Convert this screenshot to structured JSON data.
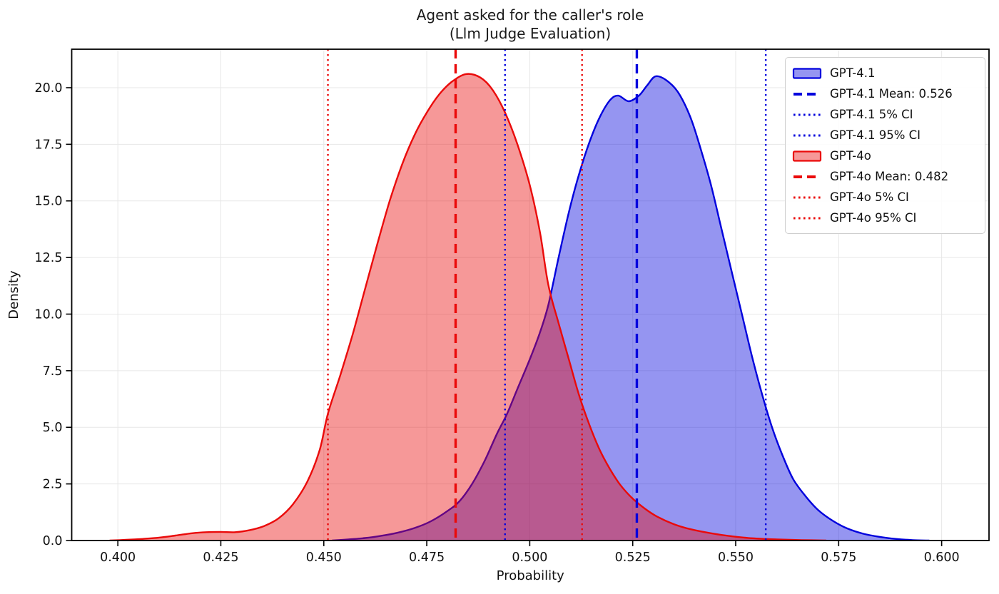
{
  "title": {
    "line1": "Agent asked for the caller's role",
    "line2": "(Llm Judge Evaluation)"
  },
  "chart_data": {
    "type": "area",
    "subtype": "kde-density-comparison",
    "title": "Agent asked for the caller's role (Llm Judge Evaluation)",
    "xlabel": "Probability",
    "ylabel": "Density",
    "xlim": [
      0.3888,
      0.6115
    ],
    "ylim": [
      0,
      21.7
    ],
    "grid": true,
    "background_color": "#ffffff",
    "grid_color": "#e7e7e7",
    "spine_color": "#000000",
    "legend_location": "upper right",
    "x_ticks": {
      "values": [
        0.4,
        0.425,
        0.45,
        0.475,
        0.5,
        0.525,
        0.55,
        0.575,
        0.6
      ],
      "labels": [
        "0.400",
        "0.425",
        "0.450",
        "0.475",
        "0.500",
        "0.525",
        "0.550",
        "0.575",
        "0.600"
      ]
    },
    "y_ticks": {
      "values": [
        0.0,
        2.5,
        5.0,
        7.5,
        10.0,
        12.5,
        15.0,
        17.5,
        20.0
      ],
      "labels": [
        "0.0",
        "2.5",
        "5.0",
        "7.5",
        "10.0",
        "12.5",
        "15.0",
        "17.5",
        "20.0"
      ]
    },
    "series": [
      {
        "name": "GPT-4.1",
        "slug": "gpt-4-1",
        "color": "#0202dd",
        "fill_opacity": 0.42,
        "mean": 0.526,
        "mean_label": "GPT-4.1 Mean: 0.526",
        "ci_5": 0.494,
        "ci_95": 0.5573,
        "x": [
          0.452,
          0.456,
          0.46,
          0.464,
          0.468,
          0.472,
          0.476,
          0.48,
          0.483,
          0.486,
          0.489,
          0.492,
          0.4945,
          0.497,
          0.5,
          0.5025,
          0.5045,
          0.507,
          0.5095,
          0.512,
          0.5145,
          0.517,
          0.5195,
          0.5215,
          0.524,
          0.5265,
          0.5285,
          0.5305,
          0.533,
          0.536,
          0.539,
          0.5415,
          0.544,
          0.5465,
          0.549,
          0.5515,
          0.554,
          0.5565,
          0.559,
          0.5615,
          0.564,
          0.567,
          0.57,
          0.5735,
          0.577,
          0.581,
          0.585,
          0.589,
          0.593,
          0.597
        ],
        "y": [
          0.0,
          0.05,
          0.11,
          0.21,
          0.35,
          0.55,
          0.85,
          1.3,
          1.75,
          2.5,
          3.5,
          4.7,
          5.6,
          6.7,
          8.0,
          9.2,
          10.4,
          12.5,
          14.5,
          16.2,
          17.6,
          18.7,
          19.45,
          19.65,
          19.4,
          19.65,
          20.1,
          20.5,
          20.35,
          19.8,
          18.7,
          17.3,
          15.7,
          13.8,
          11.9,
          10.0,
          8.1,
          6.4,
          4.9,
          3.7,
          2.7,
          1.95,
          1.35,
          0.88,
          0.54,
          0.3,
          0.16,
          0.07,
          0.02,
          0.0
        ]
      },
      {
        "name": "GPT-4o",
        "slug": "gpt-4o",
        "color": "#ea0a0a",
        "fill_opacity": 0.42,
        "mean": 0.482,
        "mean_label": "GPT-4o Mean: 0.482",
        "ci_5": 0.451,
        "ci_95": 0.5127,
        "x": [
          0.398,
          0.402,
          0.406,
          0.41,
          0.414,
          0.418,
          0.4215,
          0.425,
          0.4285,
          0.432,
          0.4355,
          0.439,
          0.4425,
          0.446,
          0.449,
          0.451,
          0.454,
          0.457,
          0.46,
          0.463,
          0.466,
          0.469,
          0.472,
          0.475,
          0.478,
          0.481,
          0.4845,
          0.488,
          0.491,
          0.494,
          0.497,
          0.5,
          0.5025,
          0.5045,
          0.507,
          0.5095,
          0.512,
          0.5145,
          0.517,
          0.5195,
          0.522,
          0.525,
          0.528,
          0.531,
          0.535,
          0.539,
          0.544,
          0.549,
          0.554,
          0.56,
          0.566,
          0.572
        ],
        "y": [
          0.0,
          0.03,
          0.07,
          0.13,
          0.22,
          0.32,
          0.37,
          0.38,
          0.37,
          0.46,
          0.64,
          0.98,
          1.6,
          2.6,
          4.0,
          5.6,
          7.3,
          9.1,
          11.1,
          13.1,
          15.0,
          16.6,
          17.9,
          18.9,
          19.7,
          20.25,
          20.6,
          20.45,
          19.9,
          18.9,
          17.5,
          15.7,
          13.6,
          11.3,
          9.6,
          8.0,
          6.4,
          5.1,
          4.0,
          3.15,
          2.45,
          1.85,
          1.4,
          1.05,
          0.72,
          0.5,
          0.32,
          0.19,
          0.1,
          0.05,
          0.02,
          0.0
        ]
      }
    ],
    "legend_entries": [
      {
        "label": "GPT-4.1",
        "glyph": "patch",
        "color": "#0202dd"
      },
      {
        "label": "GPT-4.1 Mean: 0.526",
        "glyph": "dash",
        "color": "#0202dd"
      },
      {
        "label": "GPT-4.1 5% CI",
        "glyph": "dot",
        "color": "#0202dd"
      },
      {
        "label": "GPT-4.1 95% CI",
        "glyph": "dot",
        "color": "#0202dd"
      },
      {
        "label": "GPT-4o",
        "glyph": "patch",
        "color": "#ea0a0a"
      },
      {
        "label": "GPT-4o Mean: 0.482",
        "glyph": "dash",
        "color": "#ea0a0a"
      },
      {
        "label": "GPT-4o 5% CI",
        "glyph": "dot",
        "color": "#ea0a0a"
      },
      {
        "label": "GPT-4o 95% CI",
        "glyph": "dot",
        "color": "#ea0a0a"
      }
    ]
  }
}
